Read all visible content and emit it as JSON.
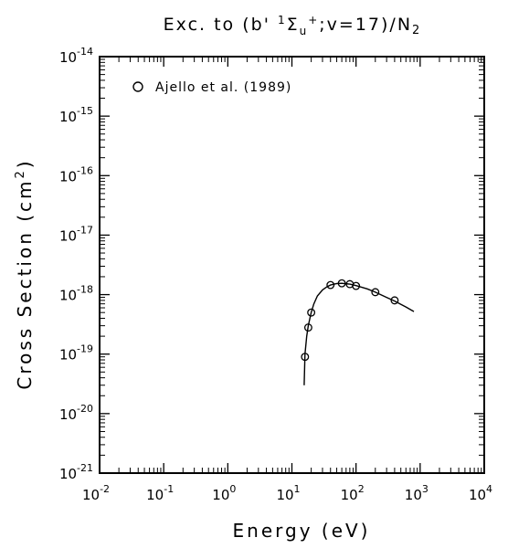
{
  "chart_data": {
    "type": "scatter",
    "title": {
      "prefix": "Exc. to (b'",
      "sup": "1",
      "sigma": "Σ",
      "sub_u": "u",
      "plus": "+",
      "suffix": ";v=17)/N",
      "sub2": "2"
    },
    "xlabel": "Energy (eV)",
    "ylabel": "Cross Section (cm",
    "ylabel_sup": "2",
    "ylabel_close": ")",
    "x_scale": "log",
    "y_scale": "log",
    "xlim": [
      0.01,
      10000
    ],
    "ylim": [
      1e-21,
      1e-14
    ],
    "x_ticks": [
      {
        "base": "10",
        "exp": "-2",
        "value": 0.01
      },
      {
        "base": "10",
        "exp": "-1",
        "value": 0.1
      },
      {
        "base": "10",
        "exp": "0",
        "value": 1
      },
      {
        "base": "10",
        "exp": "1",
        "value": 10
      },
      {
        "base": "10",
        "exp": "2",
        "value": 100
      },
      {
        "base": "10",
        "exp": "3",
        "value": 1000
      },
      {
        "base": "10",
        "exp": "4",
        "value": 10000
      }
    ],
    "y_ticks": [
      {
        "base": "10",
        "exp": "-21",
        "value": 1e-21
      },
      {
        "base": "10",
        "exp": "-20",
        "value": 1e-20
      },
      {
        "base": "10",
        "exp": "-19",
        "value": 1e-19
      },
      {
        "base": "10",
        "exp": "-18",
        "value": 1e-18
      },
      {
        "base": "10",
        "exp": "-17",
        "value": 1e-17
      },
      {
        "base": "10",
        "exp": "-16",
        "value": 1e-16
      },
      {
        "base": "10",
        "exp": "-15",
        "value": 1e-15
      },
      {
        "base": "10",
        "exp": "-14",
        "value": 1e-14
      }
    ],
    "grid": false,
    "legend": {
      "position": "top-left",
      "label": "Ajello et al. (1989)",
      "marker": "open-circle"
    },
    "series": [
      {
        "name": "Ajello et al. (1989)",
        "kind": "points",
        "marker": "open-circle",
        "x": [
          16,
          18,
          20,
          40,
          60,
          80,
          100,
          200,
          400
        ],
        "y": [
          9e-20,
          2.8e-19,
          5e-19,
          1.45e-18,
          1.55e-18,
          1.5e-18,
          1.4e-18,
          1.1e-18,
          8e-19
        ]
      },
      {
        "kind": "line",
        "x": [
          15.5,
          16,
          17,
          18,
          20,
          22,
          25,
          30,
          35,
          40,
          50,
          60,
          80,
          100,
          150,
          200,
          300,
          400,
          600,
          800
        ],
        "y": [
          3e-20,
          1e-19,
          2e-19,
          3e-19,
          5e-19,
          7e-19,
          9.5e-19,
          1.2e-18,
          1.35e-18,
          1.45e-18,
          1.53e-18,
          1.55e-18,
          1.5e-18,
          1.42e-18,
          1.25e-18,
          1.1e-18,
          9e-19,
          7.8e-19,
          6.2e-19,
          5.2e-19
        ]
      }
    ]
  }
}
